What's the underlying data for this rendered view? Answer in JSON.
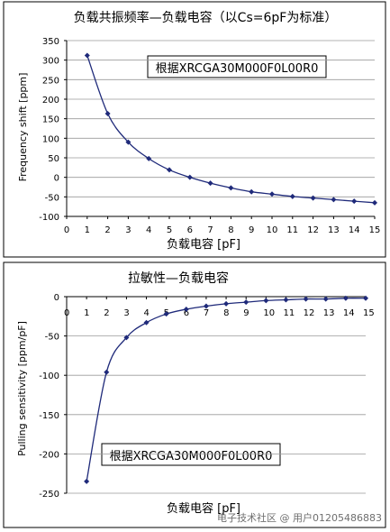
{
  "chart_data": [
    {
      "type": "line",
      "title": "负载共振频率—负载电容（以Cs=6pF为标准）",
      "xlabel": "负载电容 [pF]",
      "ylabel": "Frequency shift [ppm]",
      "annotation": "根据XRCGA30M000F0L00R0",
      "x_ticks": [
        0,
        1,
        2,
        3,
        4,
        5,
        6,
        7,
        8,
        9,
        10,
        11,
        12,
        13,
        14,
        15
      ],
      "y_ticks": [
        -100,
        -50,
        0,
        50,
        100,
        150,
        200,
        250,
        300,
        350
      ],
      "xlim": [
        0,
        15
      ],
      "ylim": [
        -100,
        350
      ],
      "grid": true,
      "series": [
        {
          "color": "#1f2a7a",
          "x": [
            1,
            2,
            3,
            4,
            5,
            6,
            7,
            8,
            9,
            10,
            11,
            12,
            13,
            14,
            15
          ],
          "y": [
            312,
            163,
            90,
            48,
            19,
            0,
            -15,
            -27,
            -37,
            -43,
            -49,
            -53,
            -57,
            -61,
            -65
          ]
        }
      ]
    },
    {
      "type": "line",
      "title": "拉敏性—负载电容",
      "xlabel": "负载电容 [pF]",
      "ylabel": "Pulling sensitivity [ppm/pF]",
      "annotation": "根据XRCGA30M000F0L00R0",
      "x_ticks": [
        0,
        1,
        2,
        3,
        4,
        5,
        6,
        7,
        8,
        9,
        10,
        11,
        12,
        13,
        14,
        15
      ],
      "y_ticks": [
        -250,
        -200,
        -150,
        -100,
        -50,
        0
      ],
      "xlim": [
        0,
        15
      ],
      "ylim": [
        -250,
        0
      ],
      "grid": true,
      "series": [
        {
          "color": "#1f2a7a",
          "x": [
            1,
            2,
            3,
            4,
            5,
            6,
            7,
            8,
            9,
            10,
            11,
            12,
            13,
            14,
            15
          ],
          "y": [
            -235,
            -96,
            -52,
            -33,
            -22,
            -16,
            -12,
            -9,
            -7,
            -5,
            -4,
            -3,
            -3,
            -2,
            -2
          ]
        }
      ]
    }
  ],
  "watermark": "电子技术社区 @ 用户01205486883"
}
